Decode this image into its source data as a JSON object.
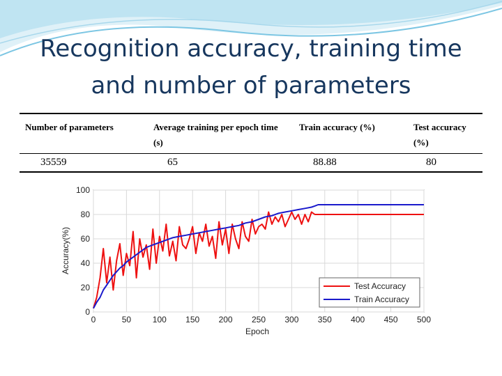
{
  "slide": {
    "title_line1": "Recognition accuracy, training time",
    "title_line2": "and number of parameters"
  },
  "table": {
    "headers": [
      "Number of parameters",
      "Average training per epoch time (s)",
      "Train accuracy (%)",
      "Test accuracy (%)"
    ],
    "rows": [
      [
        "35559",
        "65",
        "88.88",
        "80"
      ]
    ]
  },
  "chart_data": {
    "type": "line",
    "xlabel": "Epoch",
    "ylabel": "Accuracy(%)",
    "xlim": [
      0,
      500
    ],
    "ylim": [
      0,
      100
    ],
    "xticks": [
      0,
      50,
      100,
      150,
      200,
      250,
      300,
      350,
      400,
      450,
      500
    ],
    "yticks": [
      0,
      20,
      40,
      60,
      80,
      100
    ],
    "grid": true,
    "legend_position": "bottom-right",
    "series": [
      {
        "name": "Test Accuracy",
        "color": "#ee1111",
        "x": [
          0,
          5,
          10,
          15,
          20,
          25,
          30,
          35,
          40,
          45,
          50,
          55,
          60,
          65,
          70,
          75,
          80,
          85,
          90,
          95,
          100,
          105,
          110,
          115,
          120,
          125,
          130,
          135,
          140,
          145,
          150,
          155,
          160,
          165,
          170,
          175,
          180,
          185,
          190,
          195,
          200,
          205,
          210,
          215,
          220,
          225,
          230,
          235,
          240,
          245,
          250,
          255,
          260,
          265,
          270,
          275,
          280,
          285,
          290,
          295,
          300,
          305,
          310,
          315,
          320,
          325,
          330,
          335,
          340,
          345,
          350,
          400,
          450,
          500
        ],
        "values": [
          3,
          12,
          28,
          52,
          24,
          45,
          18,
          42,
          56,
          30,
          48,
          38,
          66,
          28,
          60,
          45,
          55,
          35,
          68,
          40,
          62,
          50,
          72,
          46,
          58,
          42,
          70,
          55,
          52,
          60,
          70,
          48,
          65,
          58,
          72,
          54,
          62,
          44,
          74,
          55,
          68,
          48,
          72,
          60,
          52,
          74,
          62,
          58,
          76,
          64,
          70,
          72,
          68,
          82,
          72,
          78,
          74,
          80,
          70,
          76,
          82,
          76,
          80,
          72,
          80,
          74,
          82,
          80,
          80,
          80,
          80,
          80,
          80,
          80
        ]
      },
      {
        "name": "Train Accuracy",
        "color": "#1a1acc",
        "x": [
          0,
          5,
          10,
          15,
          20,
          25,
          30,
          35,
          40,
          45,
          50,
          55,
          60,
          65,
          70,
          75,
          80,
          85,
          90,
          95,
          100,
          110,
          120,
          130,
          140,
          150,
          160,
          170,
          180,
          190,
          200,
          210,
          220,
          230,
          240,
          250,
          260,
          270,
          280,
          290,
          300,
          310,
          320,
          330,
          335,
          340,
          345,
          350,
          400,
          450,
          500
        ],
        "values": [
          3,
          8,
          12,
          18,
          22,
          26,
          30,
          33,
          36,
          38,
          41,
          43,
          45,
          47,
          49,
          51,
          53,
          54,
          55,
          56,
          57,
          59,
          61,
          62,
          63,
          64,
          65,
          66,
          67,
          68,
          69,
          70,
          71,
          73,
          74,
          76,
          78,
          79,
          81,
          82,
          83,
          84,
          85,
          86,
          87,
          88,
          88,
          88,
          88,
          88,
          88
        ]
      }
    ]
  }
}
